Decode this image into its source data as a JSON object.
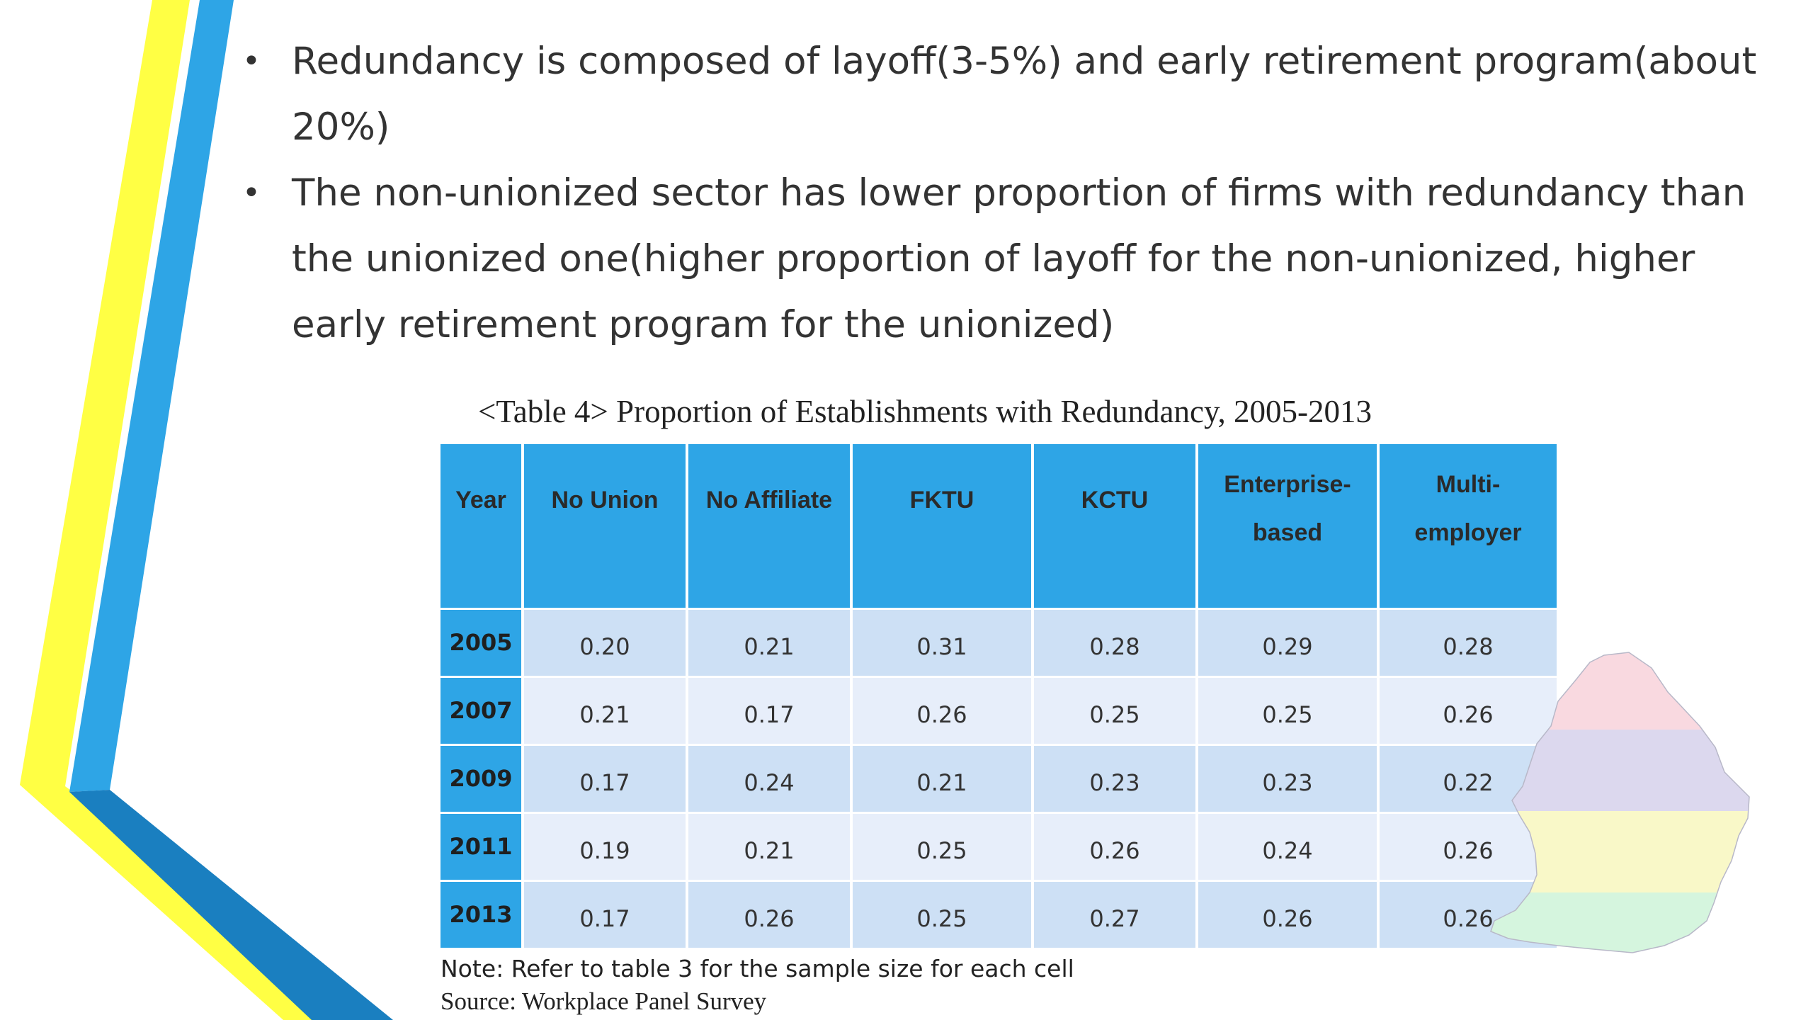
{
  "bullets": [
    "Redundancy is composed of layoff(3-5%) and early retirement program(about 20%)",
    "The non-unionized sector has lower proportion of firms with redundancy than the unionized one(higher proportion of layoff for the non-unionized, higher early retirement program for the unionized)"
  ],
  "table": {
    "caption": "<Table 4> Proportion of Establishments with Redundancy, 2005-2013",
    "headers": [
      "Year",
      "No Union",
      "No Affiliate",
      "FKTU",
      "KCTU",
      "Enterprise-based",
      "Multi-employer"
    ],
    "header_lines": {
      "enterprise": [
        "Enterprise-",
        "based"
      ],
      "multi": [
        "Multi-",
        "employer"
      ]
    },
    "rows": [
      {
        "year": "2005",
        "values": [
          "0.20",
          "0.21",
          "0.31",
          "0.28",
          "0.29",
          "0.28"
        ]
      },
      {
        "year": "2007",
        "values": [
          "0.21",
          "0.17",
          "0.26",
          "0.25",
          "0.25",
          "0.26"
        ]
      },
      {
        "year": "2009",
        "values": [
          "0.17",
          "0.24",
          "0.21",
          "0.23",
          "0.23",
          "0.22"
        ]
      },
      {
        "year": "2011",
        "values": [
          "0.19",
          "0.21",
          "0.25",
          "0.26",
          "0.24",
          "0.26"
        ]
      },
      {
        "year": "2013",
        "values": [
          "0.17",
          "0.26",
          "0.25",
          "0.27",
          "0.26",
          "0.26"
        ]
      }
    ],
    "note": "Note: Refer to table 3 for the sample size for each cell",
    "source": "Source: Workplace Panel Survey"
  },
  "colors": {
    "header_blue": "#2ea5e6",
    "row_dark": "#cde0f5",
    "row_light": "#e7eefa",
    "stripe_yellow": "#ffff44",
    "stripe_blue": "#2ea5e6",
    "stripe_dark_blue": "#1a7fc0"
  }
}
